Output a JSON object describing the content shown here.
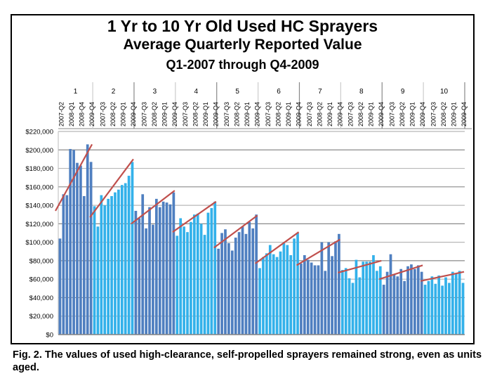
{
  "chart_data": {
    "type": "bar",
    "title": "1 Yr to 10 Yr Old Used HC Sprayers",
    "subtitle": "Average Quarterly Reported Value",
    "subtitle2": "Q1-2007 through Q4-2009",
    "xlabel": "",
    "ylabel": "",
    "ylim": [
      0,
      220000
    ],
    "y_ticks": [
      "$0",
      "$20,000",
      "$40,000",
      "$60,000",
      "$80,000",
      "$100,000",
      "$120,000",
      "$140,000",
      "$160,000",
      "$180,000",
      "$200,000",
      "$220,000"
    ],
    "grid": true,
    "legend": "none",
    "colors": {
      "odd_group": "#4f7fc0",
      "even_group": "#33b1ea",
      "trendline": "#c0504d"
    },
    "groups": [
      {
        "label": "1",
        "quarter_labels": [
          "2007-Q2",
          "2008-Q1",
          "2008-Q4",
          "2009-Q4"
        ],
        "values": [
          104000,
          152000,
          151000,
          201000,
          200000,
          186000,
          183000,
          150000,
          206000,
          187000
        ],
        "trend": [
          134000,
          206000
        ]
      },
      {
        "label": "2",
        "quarter_labels": [
          "2007-Q3",
          "2008-Q2",
          "2009-Q1",
          "2009-Q4"
        ],
        "values": [
          139000,
          117000,
          151000,
          140000,
          147000,
          150000,
          154000,
          157000,
          162000,
          164000,
          172000,
          187000
        ],
        "trend": [
          127000,
          190000
        ]
      },
      {
        "label": "3",
        "quarter_labels": [
          "2007-Q3",
          "2008-Q2",
          "2009-Q1",
          "2009-Q4"
        ],
        "values": [
          134000,
          126000,
          152000,
          115000,
          138000,
          119000,
          147000,
          138000,
          144000,
          143000,
          141000,
          154000
        ],
        "trend": [
          120000,
          156000
        ]
      },
      {
        "label": "4",
        "quarter_labels": [
          "2007-Q3",
          "2008-Q2",
          "2009-Q1",
          "2009-Q4"
        ],
        "values": [
          107000,
          126000,
          117000,
          111000,
          122000,
          130000,
          131000,
          120000,
          108000,
          132000,
          137000,
          144000
        ],
        "trend": [
          111000,
          144000
        ]
      },
      {
        "label": "5",
        "quarter_labels": [
          "2007-Q3",
          "2008-Q2",
          "2009-Q1",
          "2009-Q4"
        ],
        "values": [
          93000,
          110000,
          114000,
          99000,
          91000,
          105000,
          111000,
          117000,
          109000,
          122000,
          115000,
          130000
        ],
        "trend": [
          94000,
          129000
        ]
      },
      {
        "label": "6",
        "quarter_labels": [
          "2007-Q3",
          "2008-Q2",
          "2009-Q1",
          "2009-Q4"
        ],
        "values": [
          72000,
          84000,
          88000,
          97000,
          87000,
          84000,
          90000,
          99000,
          97000,
          86000,
          104000,
          110000
        ],
        "trend": [
          77000,
          111000
        ]
      },
      {
        "label": "7",
        "quarter_labels": [
          "2007-Q3",
          "2008-Q2",
          "2009-Q1",
          "2009-Q4"
        ],
        "values": [
          77000,
          86000,
          81000,
          78000,
          75000,
          75000,
          100000,
          69000,
          100000,
          85000,
          101000,
          109000
        ],
        "trend": [
          75000,
          103000
        ]
      },
      {
        "label": "8",
        "quarter_labels": [
          "2007-Q3",
          "2008-Q2",
          "2009-Q1",
          "2009-Q4"
        ],
        "values": [
          70000,
          72000,
          61000,
          56000,
          81000,
          62000,
          79000,
          79000,
          79000,
          86000,
          69000,
          74000
        ],
        "trend": [
          67000,
          80000
        ]
      },
      {
        "label": "9",
        "quarter_labels": [
          "2007-Q3",
          "2008-Q2",
          "2009-Q1",
          "2009-Q4"
        ],
        "values": [
          54000,
          68000,
          87000,
          65000,
          63000,
          71000,
          58000,
          74000,
          76000,
          71000,
          75000,
          68000
        ],
        "trend": [
          60000,
          75000
        ]
      },
      {
        "label": "10",
        "quarter_labels": [
          "2007-Q3",
          "2008-Q2",
          "2009-Q1",
          "2009-Q4"
        ],
        "values": [
          54000,
          58000,
          63000,
          55000,
          64000,
          53000,
          62000,
          56000,
          68000,
          66000,
          69000,
          56000
        ],
        "trend": [
          58000,
          68000
        ]
      }
    ]
  },
  "caption": "Fig. 2. The values of used high-clearance, self-propelled sprayers remained strong, even as units aged."
}
